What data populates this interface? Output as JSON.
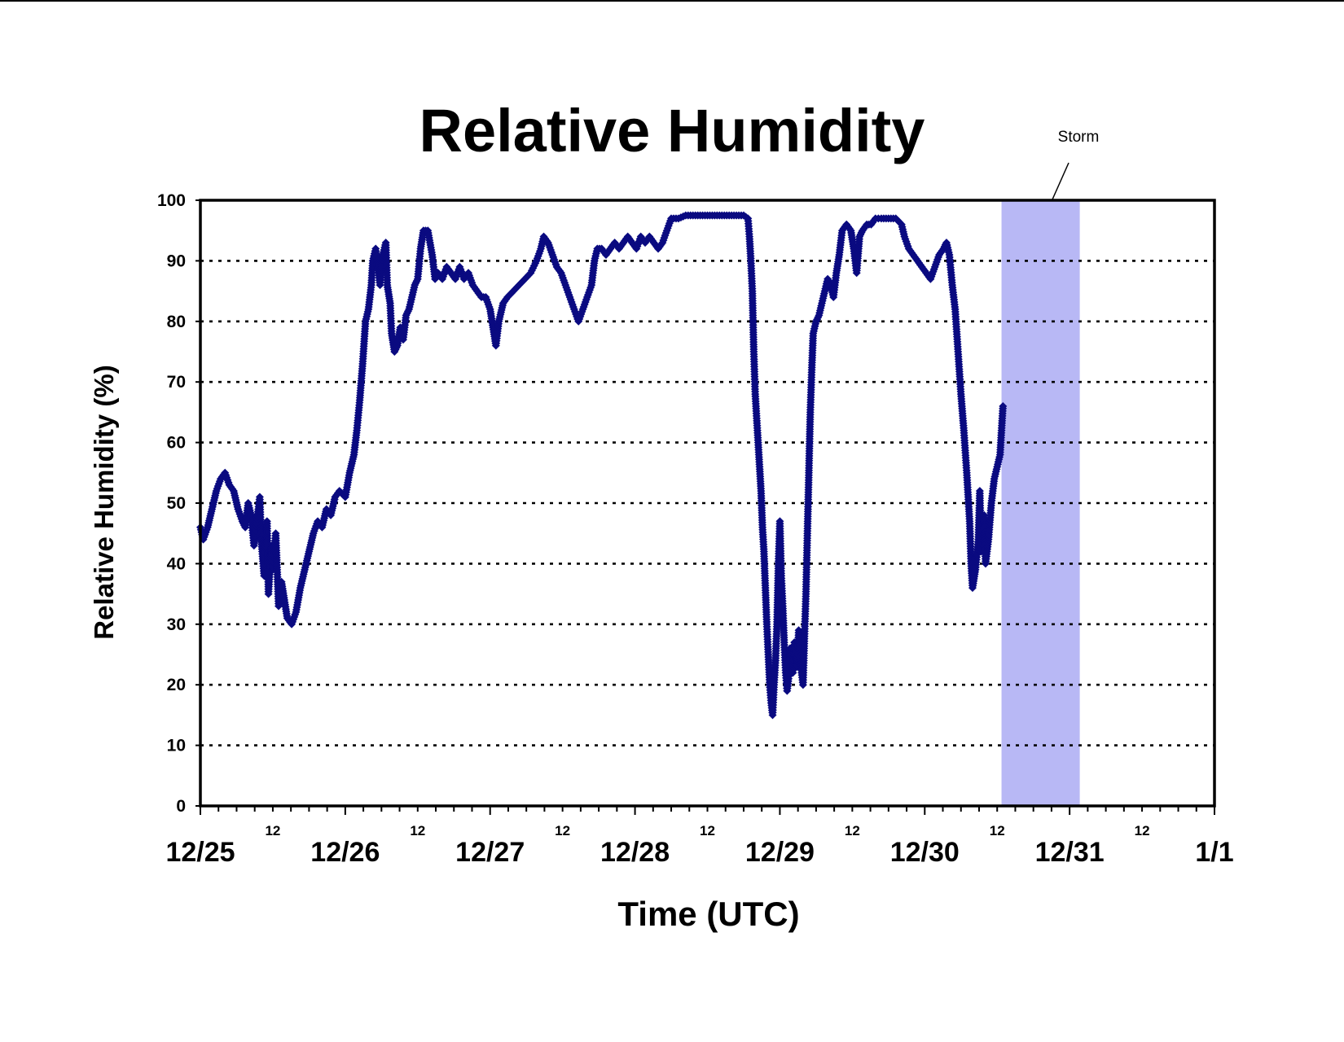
{
  "chart_data": {
    "type": "scatter",
    "title": "Relative Humidity",
    "xlabel": "Time (UTC)",
    "ylabel": "Relative Humidity (%)",
    "ylim": [
      0,
      100
    ],
    "yticks": [
      0,
      10,
      20,
      30,
      40,
      50,
      60,
      70,
      80,
      90,
      100
    ],
    "y_tick_labels": [
      "0",
      "10",
      "20",
      "30",
      "40",
      "50",
      "60",
      "70",
      "80",
      "90",
      "100"
    ],
    "x_units": "days after 12/25 00 UTC",
    "xlim": [
      0,
      7
    ],
    "grid": "horizontal dotted",
    "legend": "none",
    "x_major_ticks": [
      {
        "x": 0,
        "label": "12/25"
      },
      {
        "x": 1,
        "label": "12/26"
      },
      {
        "x": 2,
        "label": "12/27"
      },
      {
        "x": 3,
        "label": "12/28"
      },
      {
        "x": 4,
        "label": "12/29"
      },
      {
        "x": 5,
        "label": "12/30"
      },
      {
        "x": 6,
        "label": "12/31"
      },
      {
        "x": 7,
        "label": "1/1"
      }
    ],
    "x_minor_ticks": [
      {
        "x": 0.5,
        "label": "12"
      },
      {
        "x": 1.5,
        "label": "12"
      },
      {
        "x": 2.5,
        "label": "12"
      },
      {
        "x": 3.5,
        "label": "12"
      },
      {
        "x": 4.5,
        "label": "12"
      },
      {
        "x": 5.5,
        "label": "12"
      },
      {
        "x": 6.5,
        "label": "12"
      }
    ],
    "shaded_period": {
      "label": "Storm",
      "x_start": 5.53,
      "x_end": 6.07,
      "color": "#b8b8f5"
    },
    "series": [
      {
        "color": "#0a0a80",
        "points": [
          [
            0.0,
            46
          ],
          [
            0.02,
            44
          ],
          [
            0.05,
            46
          ],
          [
            0.08,
            49
          ],
          [
            0.11,
            52
          ],
          [
            0.14,
            54
          ],
          [
            0.17,
            55
          ],
          [
            0.2,
            53
          ],
          [
            0.23,
            52
          ],
          [
            0.26,
            49
          ],
          [
            0.29,
            47
          ],
          [
            0.31,
            46
          ],
          [
            0.33,
            50
          ],
          [
            0.35,
            48
          ],
          [
            0.37,
            43
          ],
          [
            0.39,
            47
          ],
          [
            0.41,
            51
          ],
          [
            0.42,
            44
          ],
          [
            0.44,
            38
          ],
          [
            0.46,
            47
          ],
          [
            0.47,
            35
          ],
          [
            0.49,
            43
          ],
          [
            0.5,
            39
          ],
          [
            0.52,
            45
          ],
          [
            0.54,
            33
          ],
          [
            0.56,
            37
          ],
          [
            0.58,
            34
          ],
          [
            0.6,
            31
          ],
          [
            0.63,
            30
          ],
          [
            0.66,
            32
          ],
          [
            0.69,
            36
          ],
          [
            0.72,
            39
          ],
          [
            0.75,
            42
          ],
          [
            0.78,
            45
          ],
          [
            0.81,
            47
          ],
          [
            0.84,
            46
          ],
          [
            0.87,
            49
          ],
          [
            0.9,
            48
          ],
          [
            0.93,
            51
          ],
          [
            0.96,
            52
          ],
          [
            1.0,
            51
          ],
          [
            1.03,
            55
          ],
          [
            1.06,
            58
          ],
          [
            1.08,
            62
          ],
          [
            1.1,
            67
          ],
          [
            1.12,
            73
          ],
          [
            1.14,
            80
          ],
          [
            1.16,
            82
          ],
          [
            1.18,
            86
          ],
          [
            1.19,
            90
          ],
          [
            1.21,
            92
          ],
          [
            1.23,
            88
          ],
          [
            1.24,
            86
          ],
          [
            1.26,
            91
          ],
          [
            1.28,
            93
          ],
          [
            1.29,
            86
          ],
          [
            1.31,
            83
          ],
          [
            1.32,
            78
          ],
          [
            1.34,
            75
          ],
          [
            1.36,
            76
          ],
          [
            1.38,
            79
          ],
          [
            1.4,
            77
          ],
          [
            1.42,
            81
          ],
          [
            1.44,
            82
          ],
          [
            1.46,
            84
          ],
          [
            1.48,
            86
          ],
          [
            1.5,
            87
          ],
          [
            1.52,
            92
          ],
          [
            1.54,
            95
          ],
          [
            1.57,
            95
          ],
          [
            1.6,
            91
          ],
          [
            1.62,
            87
          ],
          [
            1.64,
            88
          ],
          [
            1.67,
            87
          ],
          [
            1.7,
            89
          ],
          [
            1.73,
            88
          ],
          [
            1.76,
            87
          ],
          [
            1.79,
            89
          ],
          [
            1.82,
            87
          ],
          [
            1.85,
            88
          ],
          [
            1.88,
            86
          ],
          [
            1.91,
            85
          ],
          [
            1.94,
            84
          ],
          [
            1.97,
            84
          ],
          [
            2.0,
            82
          ],
          [
            2.02,
            79
          ],
          [
            2.04,
            76
          ],
          [
            2.06,
            80
          ],
          [
            2.09,
            83
          ],
          [
            2.12,
            84
          ],
          [
            2.16,
            85
          ],
          [
            2.2,
            86
          ],
          [
            2.24,
            87
          ],
          [
            2.28,
            88
          ],
          [
            2.32,
            90
          ],
          [
            2.35,
            92
          ],
          [
            2.37,
            94
          ],
          [
            2.4,
            93
          ],
          [
            2.43,
            91
          ],
          [
            2.46,
            89
          ],
          [
            2.49,
            88
          ],
          [
            2.52,
            86
          ],
          [
            2.55,
            84
          ],
          [
            2.58,
            82
          ],
          [
            2.61,
            80
          ],
          [
            2.64,
            82
          ],
          [
            2.67,
            84
          ],
          [
            2.7,
            86
          ],
          [
            2.72,
            90
          ],
          [
            2.74,
            92
          ],
          [
            2.77,
            92
          ],
          [
            2.8,
            91
          ],
          [
            2.83,
            92
          ],
          [
            2.86,
            93
          ],
          [
            2.89,
            92
          ],
          [
            2.92,
            93
          ],
          [
            2.95,
            94
          ],
          [
            2.98,
            93
          ],
          [
            3.01,
            92
          ],
          [
            3.04,
            94
          ],
          [
            3.07,
            93
          ],
          [
            3.1,
            94
          ],
          [
            3.13,
            93
          ],
          [
            3.16,
            92
          ],
          [
            3.19,
            93
          ],
          [
            3.22,
            95
          ],
          [
            3.25,
            97
          ],
          [
            3.3,
            97
          ],
          [
            3.35,
            97.5
          ],
          [
            3.4,
            97.5
          ],
          [
            3.45,
            97.5
          ],
          [
            3.5,
            97.5
          ],
          [
            3.55,
            97.5
          ],
          [
            3.6,
            97.5
          ],
          [
            3.65,
            97.5
          ],
          [
            3.7,
            97.5
          ],
          [
            3.75,
            97.5
          ],
          [
            3.78,
            97
          ],
          [
            3.79,
            94
          ],
          [
            3.8,
            90
          ],
          [
            3.81,
            85
          ],
          [
            3.82,
            75
          ],
          [
            3.83,
            68
          ],
          [
            3.84,
            64
          ],
          [
            3.85,
            60
          ],
          [
            3.86,
            56
          ],
          [
            3.87,
            52
          ],
          [
            3.88,
            46
          ],
          [
            3.89,
            42
          ],
          [
            3.9,
            36
          ],
          [
            3.91,
            30
          ],
          [
            3.92,
            25
          ],
          [
            3.93,
            20
          ],
          [
            3.94,
            17
          ],
          [
            3.95,
            15
          ],
          [
            3.96,
            20
          ],
          [
            3.97,
            24
          ],
          [
            3.98,
            30
          ],
          [
            3.99,
            40
          ],
          [
            4.0,
            47
          ],
          [
            4.01,
            38
          ],
          [
            4.02,
            33
          ],
          [
            4.03,
            27
          ],
          [
            4.04,
            22
          ],
          [
            4.05,
            19
          ],
          [
            4.06,
            21
          ],
          [
            4.07,
            26
          ],
          [
            4.08,
            24
          ],
          [
            4.09,
            22
          ],
          [
            4.1,
            27
          ],
          [
            4.11,
            25
          ],
          [
            4.12,
            23
          ],
          [
            4.13,
            29
          ],
          [
            4.14,
            26
          ],
          [
            4.15,
            22
          ],
          [
            4.16,
            20
          ],
          [
            4.17,
            28
          ],
          [
            4.18,
            35
          ],
          [
            4.19,
            45
          ],
          [
            4.2,
            55
          ],
          [
            4.21,
            65
          ],
          [
            4.22,
            72
          ],
          [
            4.23,
            78
          ],
          [
            4.25,
            80
          ],
          [
            4.27,
            81
          ],
          [
            4.29,
            83
          ],
          [
            4.31,
            85
          ],
          [
            4.33,
            87
          ],
          [
            4.35,
            86
          ],
          [
            4.37,
            84
          ],
          [
            4.39,
            88
          ],
          [
            4.41,
            91
          ],
          [
            4.43,
            95
          ],
          [
            4.46,
            96
          ],
          [
            4.49,
            95
          ],
          [
            4.51,
            92
          ],
          [
            4.53,
            88
          ],
          [
            4.55,
            94
          ],
          [
            4.57,
            95
          ],
          [
            4.6,
            96
          ],
          [
            4.63,
            96
          ],
          [
            4.66,
            97
          ],
          [
            4.7,
            97
          ],
          [
            4.75,
            97
          ],
          [
            4.8,
            97
          ],
          [
            4.84,
            96
          ],
          [
            4.86,
            94
          ],
          [
            4.89,
            92
          ],
          [
            4.92,
            91
          ],
          [
            4.95,
            90
          ],
          [
            4.98,
            89
          ],
          [
            5.01,
            88
          ],
          [
            5.04,
            87
          ],
          [
            5.07,
            89
          ],
          [
            5.1,
            91
          ],
          [
            5.13,
            92
          ],
          [
            5.15,
            93
          ],
          [
            5.17,
            91
          ],
          [
            5.19,
            86
          ],
          [
            5.21,
            82
          ],
          [
            5.23,
            75
          ],
          [
            5.25,
            68
          ],
          [
            5.27,
            62
          ],
          [
            5.29,
            55
          ],
          [
            5.31,
            47
          ],
          [
            5.32,
            40
          ],
          [
            5.33,
            36
          ],
          [
            5.35,
            39
          ],
          [
            5.37,
            44
          ],
          [
            5.38,
            52
          ],
          [
            5.39,
            42
          ],
          [
            5.41,
            48
          ],
          [
            5.42,
            40
          ],
          [
            5.44,
            44
          ],
          [
            5.46,
            50
          ],
          [
            5.48,
            54
          ],
          [
            5.5,
            56
          ],
          [
            5.52,
            58
          ],
          [
            5.53,
            62
          ],
          [
            5.54,
            66
          ]
        ]
      }
    ]
  }
}
